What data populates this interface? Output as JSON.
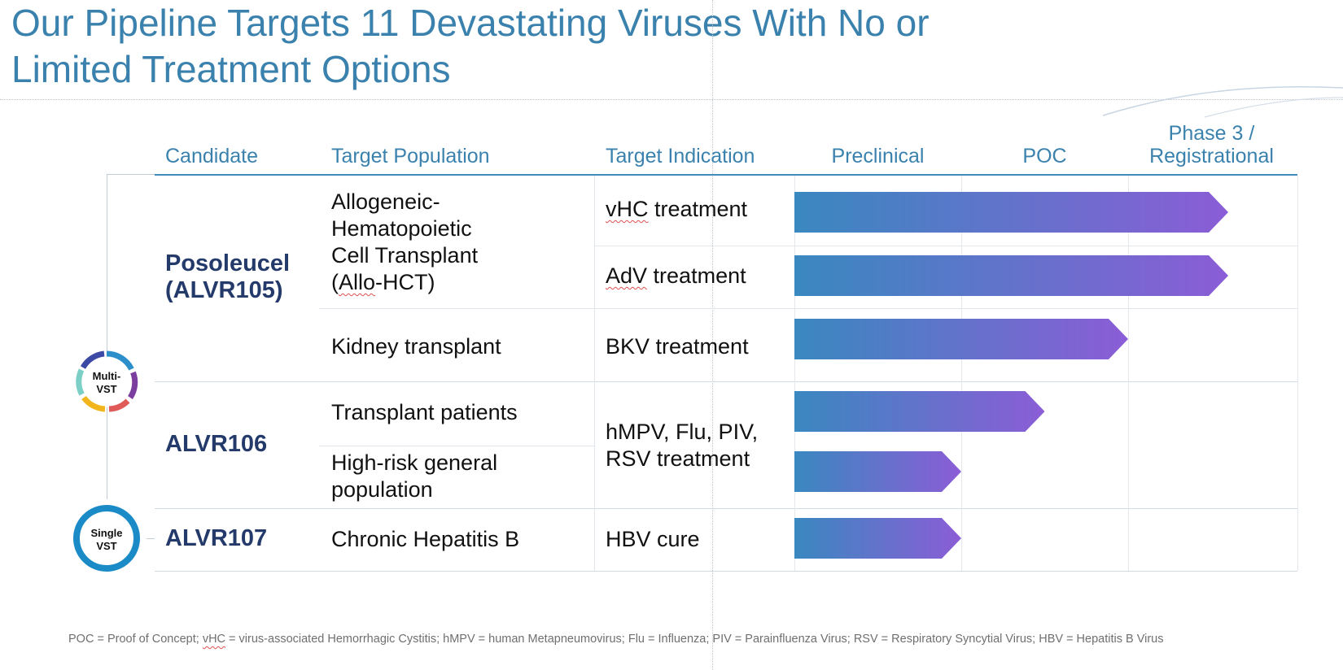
{
  "title": {
    "line1": "Our Pipeline Targets 11 Devastating Viruses With No or",
    "line2": "Limited Treatment Options"
  },
  "headers": {
    "candidate": "Candidate",
    "target_population": "Target Population",
    "target_indication": "Target Indication",
    "preclinical": "Preclinical",
    "poc": "POC",
    "phase3_line1": "Phase 3 /",
    "phase3_line2": "Registrational"
  },
  "badges": {
    "multi_line1": "Multi-",
    "multi_line2": "VST",
    "single_line1": "Single",
    "single_line2": "VST"
  },
  "candidates": {
    "posoleucel_line1": "Posoleucel",
    "posoleucel_line2": "(ALVR105)",
    "alvr106": "ALVR106",
    "alvr107": "ALVR107"
  },
  "populations": {
    "allo_line1": "Allogeneic-",
    "allo_line2": "Hematopoietic",
    "allo_line3": "Cell Transplant",
    "allo_line4_pre": "(",
    "allo_line4_spell": "Allo",
    "allo_line4_post": "-HCT)",
    "kidney": "Kidney transplant",
    "transplant_patients": "Transplant patients",
    "highrisk_line1": "High-risk general",
    "highrisk_line2": "population",
    "hepb": "Chronic Hepatitis B"
  },
  "indications": {
    "vhc_abbr": "vHC",
    "vhc_rest": " treatment",
    "adv_abbr": "AdV",
    "adv_rest": " treatment",
    "bkv": "BKV treatment",
    "resp_line1": "hMPV, Flu, PIV,",
    "resp_line2": "RSV treatment",
    "hbv": "HBV cure"
  },
  "footnote": {
    "pre": "POC = Proof of Concept; ",
    "vhc": "vHC",
    "post": " = virus-associated Hemorrhagic Cystitis; hMPV = human Metapneumovirus; Flu = Influenza; PIV = Parainfluenza Virus; RSV = Respiratory Syncytial Virus; HBV = Hepatitis B Virus"
  },
  "colors": {
    "title": "#3a82ad",
    "candidate": "#233a6a",
    "bar_start": "#3a88c0",
    "bar_end": "#8b5dd6",
    "single_ring": "#1a8bc7"
  },
  "chart_data": {
    "type": "bar",
    "orientation": "horizontal",
    "phases": [
      "Preclinical",
      "POC",
      "Phase 3 / Registrational"
    ],
    "series": [
      {
        "name": "vHC treatment",
        "candidate": "Posoleucel (ALVR105)",
        "phase_progress": 2.6
      },
      {
        "name": "AdV treatment",
        "candidate": "Posoleucel (ALVR105)",
        "phase_progress": 2.6
      },
      {
        "name": "BKV treatment",
        "candidate": "Posoleucel (ALVR105)",
        "phase_progress": 2.0
      },
      {
        "name": "hMPV, Flu, PIV, RSV treatment (Transplant patients)",
        "candidate": "ALVR106",
        "phase_progress": 1.5
      },
      {
        "name": "hMPV, Flu, PIV, RSV treatment (High-risk general population)",
        "candidate": "ALVR106",
        "phase_progress": 1.0
      },
      {
        "name": "HBV cure",
        "candidate": "ALVR107",
        "phase_progress": 1.0
      }
    ]
  }
}
